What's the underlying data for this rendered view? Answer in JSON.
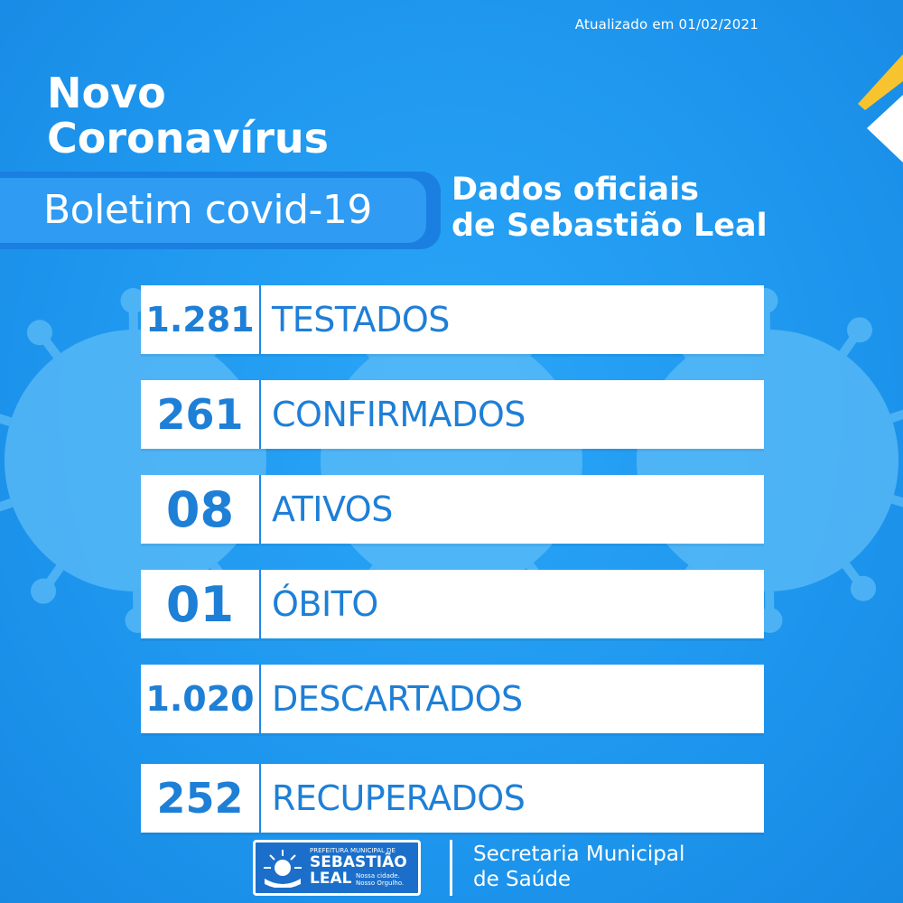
{
  "header": {
    "updated": "Atualizado em 01/02/2021",
    "title_line1": "Novo",
    "title_line2": "Coronavírus",
    "banner": "Boletim covid-19",
    "official_line1": "Dados oficiais",
    "official_line2": "de Sebastião Leal"
  },
  "stats": [
    {
      "value": "1.281",
      "label": "TESTADOS"
    },
    {
      "value": "261",
      "label": "CONFIRMADOS"
    },
    {
      "value": "08",
      "label": "ATIVOS"
    },
    {
      "value": "01",
      "label": "ÓBITO"
    },
    {
      "value": "1.020",
      "label": "DESCARTADOS"
    },
    {
      "value": "252",
      "label": "RECUPERADOS"
    }
  ],
  "footer": {
    "logo_small": "PREFEITURA MUNICIPAL DE",
    "logo_big1": "SEBASTIÃO",
    "logo_big2": "LEAL",
    "logo_motto1": "Nossa cidade.",
    "logo_motto2": "Nosso Orgulho.",
    "dept_line1": "Secretaria Municipal",
    "dept_line2": "de Saúde"
  },
  "colors": {
    "background": "#1e96ee",
    "accent_text": "#1e7fd6",
    "corner_yellow": "#f7c32e"
  }
}
